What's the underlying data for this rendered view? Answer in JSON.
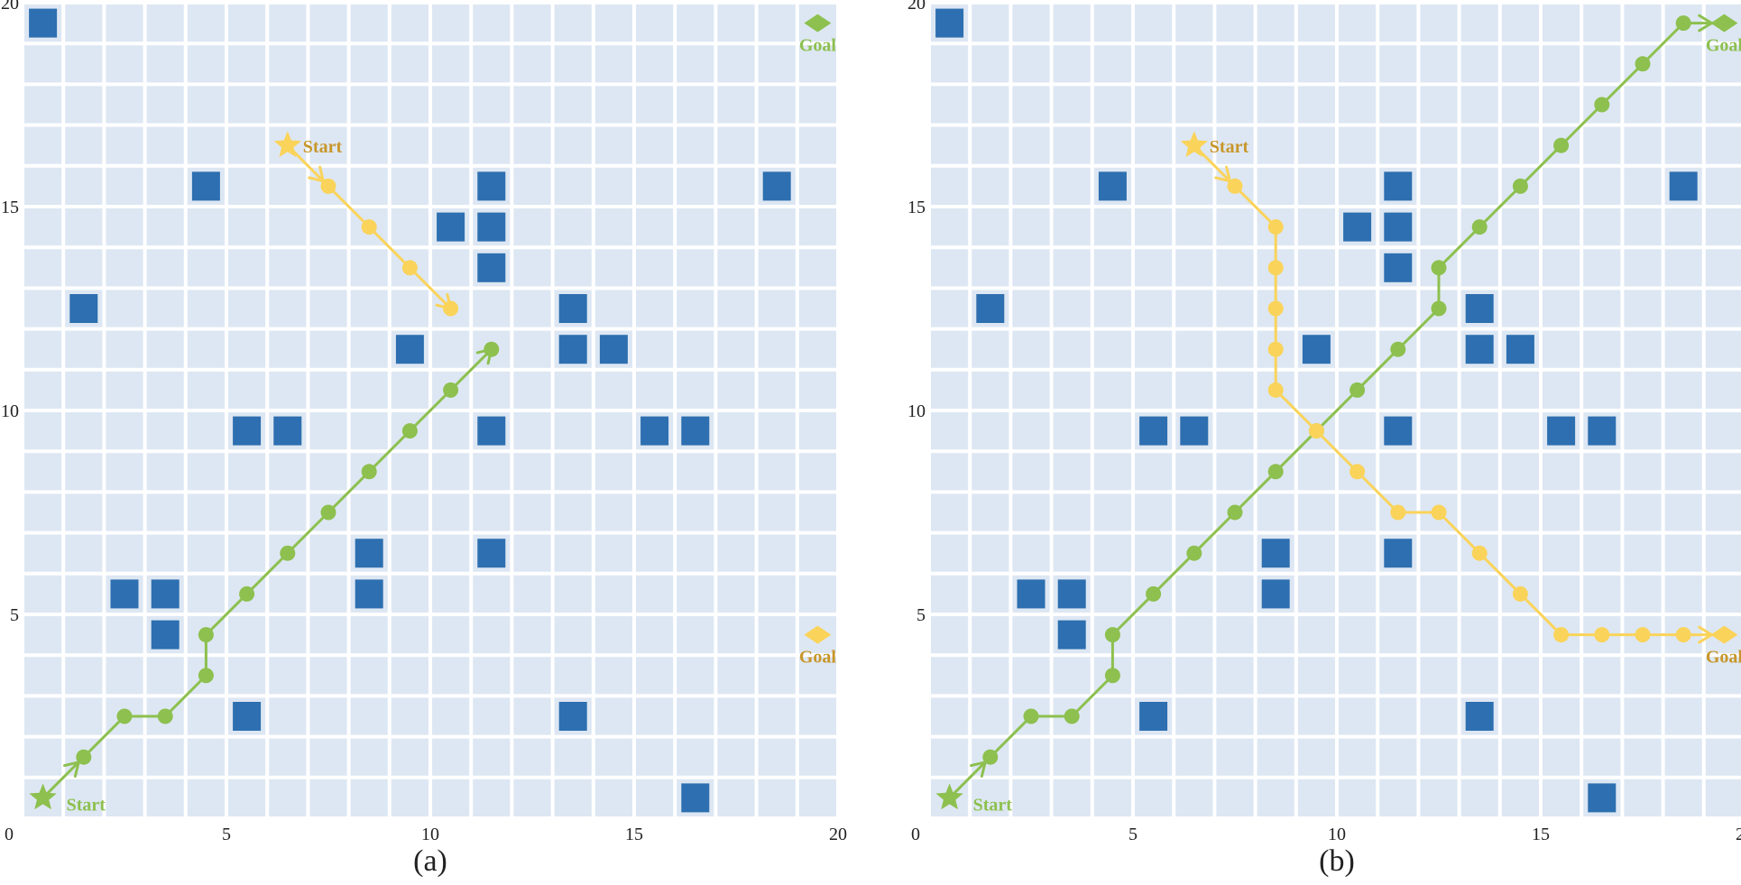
{
  "colors": {
    "background": "#ffffff",
    "cell": "#dde7f3",
    "grid_line": "#ffffff",
    "obstacle": "#2d6fb0",
    "green_agent": "#8dc04f",
    "yellow_agent": "#fad35a",
    "yellow_text": "#c8962a",
    "green_text": "#8dc04f"
  },
  "grid": {
    "size": 20,
    "ticks": [
      "0",
      "5",
      "10",
      "15",
      "20"
    ]
  },
  "obstacles": [
    [
      0.5,
      19.5
    ],
    [
      4.5,
      15.5
    ],
    [
      18.5,
      15.5
    ],
    [
      10.5,
      14.5
    ],
    [
      11.5,
      15.5
    ],
    [
      11.5,
      14.5
    ],
    [
      11.5,
      13.5
    ],
    [
      1.5,
      12.5
    ],
    [
      13.5,
      12.5
    ],
    [
      9.5,
      11.5
    ],
    [
      13.5,
      11.5
    ],
    [
      14.5,
      11.5
    ],
    [
      5.5,
      9.5
    ],
    [
      6.5,
      9.5
    ],
    [
      11.5,
      9.5
    ],
    [
      15.5,
      9.5
    ],
    [
      16.5,
      9.5
    ],
    [
      8.5,
      6.5
    ],
    [
      8.5,
      5.5
    ],
    [
      11.5,
      6.5
    ],
    [
      2.5,
      5.5
    ],
    [
      3.5,
      5.5
    ],
    [
      3.5,
      4.5
    ],
    [
      5.5,
      2.5
    ],
    [
      13.5,
      2.5
    ],
    [
      16.5,
      0.5
    ]
  ],
  "panels": [
    {
      "caption": "(a)",
      "green": {
        "start_label": "Start",
        "goal_label": "Goal",
        "start": [
          0.5,
          0.5
        ],
        "goal": [
          19.5,
          19.5
        ],
        "path": [
          [
            0.5,
            0.5
          ],
          [
            1.5,
            1.5
          ],
          [
            2.5,
            2.5
          ],
          [
            3.5,
            2.5
          ],
          [
            4.5,
            3.5
          ],
          [
            4.5,
            4.5
          ],
          [
            5.5,
            5.5
          ],
          [
            6.5,
            6.5
          ],
          [
            7.5,
            7.5
          ],
          [
            8.5,
            8.5
          ],
          [
            9.5,
            9.5
          ],
          [
            10.5,
            10.5
          ],
          [
            11.5,
            11.5
          ]
        ],
        "arrow_at": [
          11.5,
          11.5
        ]
      },
      "yellow": {
        "start_label": "Start",
        "goal_label": "Goal",
        "start": [
          6.5,
          16.5
        ],
        "goal": [
          19.5,
          4.5
        ],
        "path": [
          [
            6.5,
            16.5
          ],
          [
            7.5,
            15.5
          ],
          [
            8.5,
            14.5
          ],
          [
            9.5,
            13.5
          ],
          [
            10.5,
            12.5
          ]
        ],
        "arrow_at": [
          10.5,
          12.5
        ]
      }
    },
    {
      "caption": "(b)",
      "green": {
        "start_label": "Start",
        "goal_label": "Goal",
        "start": [
          0.5,
          0.5
        ],
        "goal": [
          19.5,
          19.5
        ],
        "path": [
          [
            0.5,
            0.5
          ],
          [
            1.5,
            1.5
          ],
          [
            2.5,
            2.5
          ],
          [
            3.5,
            2.5
          ],
          [
            4.5,
            3.5
          ],
          [
            4.5,
            4.5
          ],
          [
            5.5,
            5.5
          ],
          [
            6.5,
            6.5
          ],
          [
            7.5,
            7.5
          ],
          [
            8.5,
            8.5
          ],
          [
            9.5,
            9.5
          ],
          [
            10.5,
            10.5
          ],
          [
            11.5,
            11.5
          ],
          [
            12.5,
            12.5
          ],
          [
            12.5,
            13.5
          ],
          [
            13.5,
            14.5
          ],
          [
            14.5,
            15.5
          ],
          [
            15.5,
            16.5
          ],
          [
            16.5,
            17.5
          ],
          [
            17.5,
            18.5
          ],
          [
            18.5,
            19.5
          ],
          [
            19.5,
            19.5
          ]
        ],
        "arrow_at": [
          19.5,
          19.5
        ]
      },
      "yellow": {
        "start_label": "Start",
        "goal_label": "Goal",
        "start": [
          6.5,
          16.5
        ],
        "goal": [
          19.5,
          4.5
        ],
        "path": [
          [
            6.5,
            16.5
          ],
          [
            7.5,
            15.5
          ],
          [
            8.5,
            14.5
          ],
          [
            8.5,
            13.5
          ],
          [
            8.5,
            12.5
          ],
          [
            8.5,
            11.5
          ],
          [
            8.5,
            10.5
          ],
          [
            9.5,
            9.5
          ],
          [
            10.5,
            8.5
          ],
          [
            11.5,
            7.5
          ],
          [
            12.5,
            7.5
          ],
          [
            13.5,
            6.5
          ],
          [
            14.5,
            5.5
          ],
          [
            15.5,
            4.5
          ],
          [
            16.5,
            4.5
          ],
          [
            17.5,
            4.5
          ],
          [
            18.5,
            4.5
          ],
          [
            19.5,
            4.5
          ]
        ],
        "arrow_at": [
          19.5,
          4.5
        ]
      }
    }
  ]
}
